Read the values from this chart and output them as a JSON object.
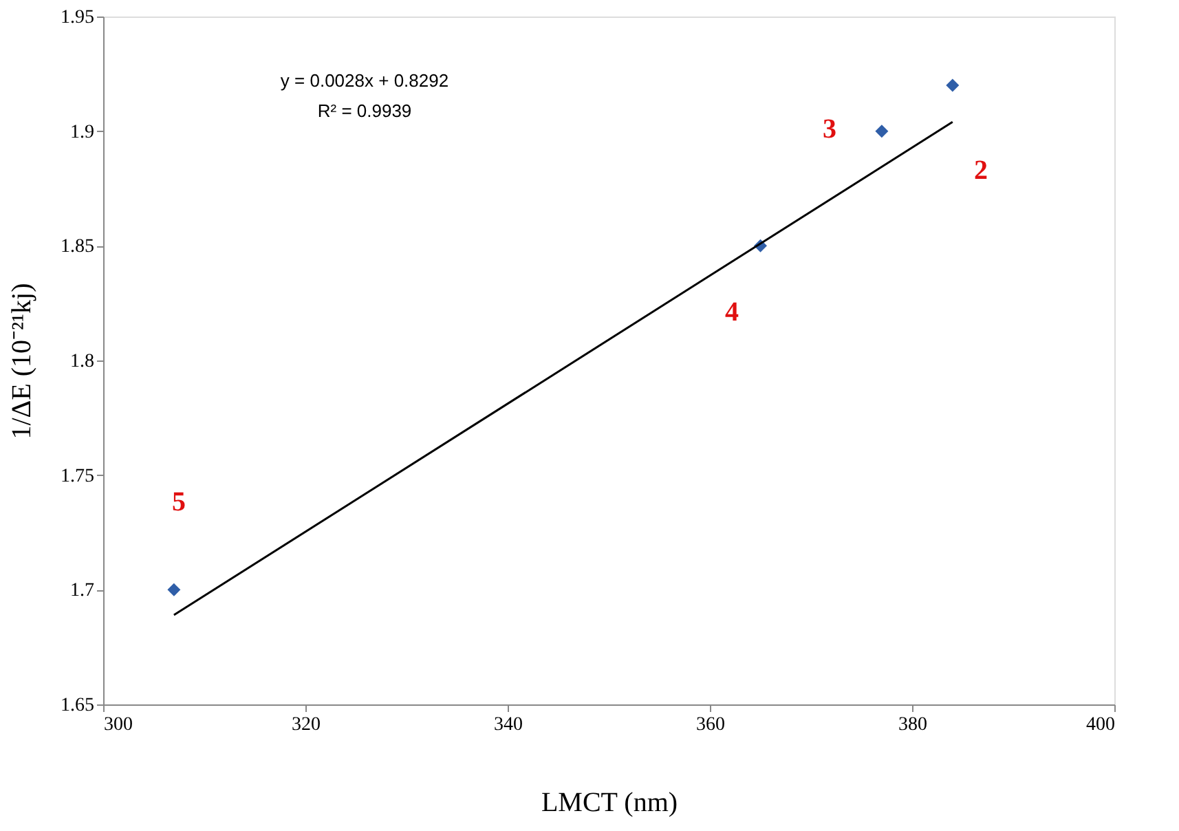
{
  "chart_data": {
    "type": "scatter",
    "xlabel": "LMCT (nm)",
    "ylabel": "1/ΔE (10⁻²¹kj)",
    "xlim": [
      300,
      400
    ],
    "xticks": [
      300,
      320,
      340,
      360,
      380,
      400
    ],
    "ylim": [
      1.65,
      1.95
    ],
    "yticks": [
      1.65,
      1.7,
      1.75,
      1.8,
      1.85,
      1.9,
      1.95
    ],
    "grid": false,
    "series": [
      {
        "color": "#2f5ea8",
        "marker": "diamond",
        "x": [
          307,
          365,
          377,
          384
        ],
        "values": [
          1.7,
          1.85,
          1.9,
          1.92
        ]
      },
      {
        "type": "line",
        "color": "#000000",
        "line_style": "solid",
        "x": [
          307,
          384
        ],
        "values": [
          1.689,
          1.904
        ]
      }
    ],
    "annotations": [
      "y = 0.0028x + 0.8292",
      "R² = 0.9939",
      "2",
      "3",
      "4",
      "5"
    ]
  }
}
